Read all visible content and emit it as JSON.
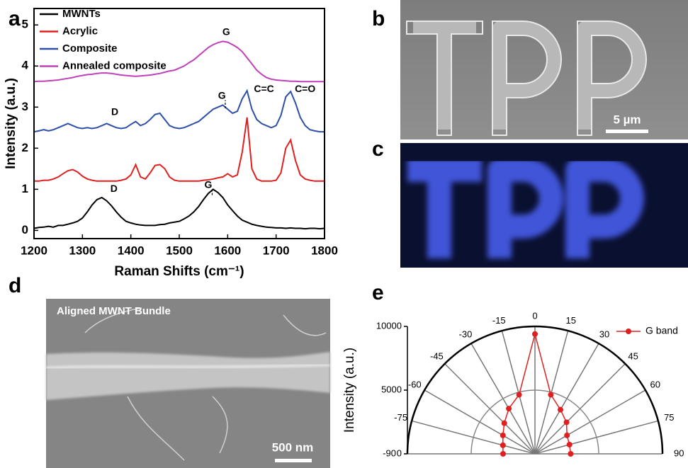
{
  "panel_labels": [
    "a",
    "b",
    "c",
    "d",
    "e"
  ],
  "images": {
    "b": {
      "scale_bar": "5 µm"
    },
    "d": {
      "caption": "Aligned MWNT Bundle",
      "scale_bar": "500 nm"
    }
  },
  "chart_data": [
    {
      "type": "line",
      "xlabel": "Raman Shifts (cm⁻¹)",
      "ylabel": "Intensity (a.u.)",
      "xlim": [
        1200,
        1800
      ],
      "xticks": [
        1200,
        1300,
        1400,
        1500,
        1600,
        1700,
        1800
      ],
      "ylim": [
        -0.2,
        5.4
      ],
      "yticks": [
        0,
        1,
        2,
        3,
        4,
        5
      ],
      "legend": "upper left",
      "annotations": [
        "G",
        "D",
        "G",
        "C=C",
        "C=O",
        "D",
        "G"
      ],
      "x": [
        1200,
        1210,
        1220,
        1230,
        1240,
        1250,
        1260,
        1270,
        1280,
        1290,
        1300,
        1310,
        1320,
        1330,
        1340,
        1350,
        1360,
        1370,
        1380,
        1390,
        1400,
        1410,
        1420,
        1430,
        1440,
        1450,
        1460,
        1470,
        1480,
        1490,
        1500,
        1510,
        1520,
        1530,
        1540,
        1550,
        1560,
        1570,
        1580,
        1590,
        1600,
        1610,
        1620,
        1630,
        1640,
        1650,
        1660,
        1670,
        1680,
        1690,
        1700,
        1710,
        1720,
        1730,
        1740,
        1750,
        1760,
        1770,
        1780,
        1790,
        1800
      ],
      "series": [
        {
          "name": "MWNTs",
          "color": "#000000",
          "values": [
            0.05,
            0.07,
            0.08,
            0.1,
            0.08,
            0.12,
            0.12,
            0.15,
            0.18,
            0.22,
            0.3,
            0.45,
            0.62,
            0.75,
            0.8,
            0.72,
            0.6,
            0.45,
            0.32,
            0.22,
            0.18,
            0.15,
            0.13,
            0.12,
            0.12,
            0.12,
            0.14,
            0.15,
            0.18,
            0.2,
            0.22,
            0.28,
            0.35,
            0.45,
            0.58,
            0.75,
            0.9,
            1.0,
            0.92,
            0.8,
            0.62,
            0.48,
            0.35,
            0.25,
            0.2,
            0.15,
            0.12,
            0.1,
            0.08,
            0.07,
            0.06,
            0.06,
            0.05,
            0.06,
            0.05,
            0.05,
            0.04,
            0.05,
            0.05,
            0.04,
            0.05
          ]
        },
        {
          "name": "Acrylic",
          "color": "#e02020",
          "values": [
            1.2,
            1.2,
            1.22,
            1.22,
            1.25,
            1.3,
            1.38,
            1.45,
            1.48,
            1.42,
            1.32,
            1.25,
            1.22,
            1.2,
            1.2,
            1.2,
            1.2,
            1.2,
            1.22,
            1.25,
            1.35,
            1.6,
            1.3,
            1.25,
            1.4,
            1.58,
            1.6,
            1.5,
            1.3,
            1.22,
            1.2,
            1.2,
            1.2,
            1.2,
            1.2,
            1.22,
            1.23,
            1.25,
            1.28,
            1.3,
            1.38,
            1.3,
            1.35,
            1.9,
            2.75,
            1.5,
            1.25,
            1.2,
            1.2,
            1.2,
            1.22,
            1.4,
            2.0,
            2.2,
            1.7,
            1.35,
            1.25,
            1.22,
            1.2,
            1.2,
            1.2
          ]
        },
        {
          "name": "Composite",
          "color": "#2e4fa8",
          "values": [
            2.4,
            2.42,
            2.45,
            2.42,
            2.45,
            2.5,
            2.55,
            2.6,
            2.55,
            2.5,
            2.48,
            2.5,
            2.48,
            2.5,
            2.55,
            2.6,
            2.55,
            2.5,
            2.48,
            2.5,
            2.58,
            2.65,
            2.55,
            2.6,
            2.7,
            2.82,
            2.85,
            2.7,
            2.55,
            2.5,
            2.48,
            2.5,
            2.55,
            2.6,
            2.65,
            2.75,
            2.85,
            2.95,
            3.0,
            3.05,
            2.95,
            2.85,
            2.9,
            3.2,
            3.4,
            2.95,
            2.7,
            2.6,
            2.55,
            2.5,
            2.55,
            2.8,
            3.25,
            3.38,
            3.1,
            2.75,
            2.55,
            2.45,
            2.42,
            2.4,
            2.4
          ]
        },
        {
          "name": "Annealed composite",
          "color": "#c040b8",
          "values": [
            3.62,
            3.63,
            3.63,
            3.64,
            3.65,
            3.66,
            3.68,
            3.7,
            3.72,
            3.75,
            3.77,
            3.79,
            3.8,
            3.82,
            3.83,
            3.83,
            3.82,
            3.8,
            3.78,
            3.77,
            3.76,
            3.75,
            3.76,
            3.77,
            3.78,
            3.8,
            3.82,
            3.85,
            3.88,
            3.9,
            3.95,
            4.0,
            4.08,
            4.15,
            4.25,
            4.35,
            4.45,
            4.52,
            4.57,
            4.6,
            4.58,
            4.52,
            4.45,
            4.35,
            4.2,
            4.05,
            3.9,
            3.8,
            3.72,
            3.68,
            3.66,
            3.65,
            3.64,
            3.63,
            3.63,
            3.62,
            3.62,
            3.62,
            3.62,
            3.62,
            3.62
          ]
        }
      ]
    },
    {
      "type": "polar",
      "ylabel": "Intensity (a.u.)",
      "thetalim": [
        -90,
        90
      ],
      "thetaticks": [
        -90,
        -75,
        -60,
        -45,
        -30,
        -15,
        0,
        15,
        30,
        45,
        60,
        75,
        90
      ],
      "ylim": [
        0,
        10000
      ],
      "yticks": [
        0,
        5000,
        10000
      ],
      "legend": "upper right",
      "series": [
        {
          "name": "G band",
          "color": "#e02020",
          "theta": [
            -90,
            -75,
            -60,
            -45,
            -30,
            -15,
            0,
            15,
            30,
            45,
            60,
            75,
            90
          ],
          "values": [
            2500,
            2600,
            2900,
            3400,
            4100,
            4800,
            9400,
            4800,
            4000,
            3500,
            2900,
            2800,
            2800
          ]
        }
      ]
    }
  ]
}
